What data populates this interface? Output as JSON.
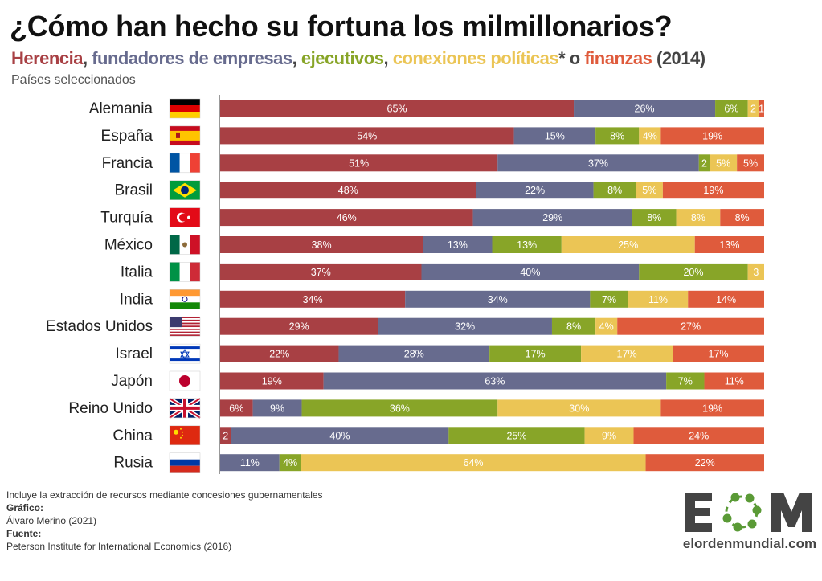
{
  "title": "¿Cómo han hecho su fortuna los milmillonarios?",
  "subtitle": {
    "parts": [
      {
        "text": "Herencia",
        "color": "#a84044"
      },
      {
        "text": ", ",
        "color": "#444444"
      },
      {
        "text": "fundadores de empresas",
        "color": "#676b8e"
      },
      {
        "text": ", ",
        "color": "#444444"
      },
      {
        "text": "ejecutivos",
        "color": "#88a528"
      },
      {
        "text": ", ",
        "color": "#444444"
      },
      {
        "text": "conexiones políticas",
        "color": "#ebc555"
      },
      {
        "text": "* o ",
        "color": "#444444"
      },
      {
        "text": "finanzas",
        "color": "#df5b3c"
      },
      {
        "text": " (2014)",
        "color": "#444444"
      }
    ]
  },
  "note": "Países seleccionados",
  "chart_data": {
    "type": "bar",
    "orientation": "horizontal",
    "stacked": true,
    "normalized": true,
    "unit": "%",
    "series": [
      {
        "name": "Herencia",
        "color": "#a84044"
      },
      {
        "name": "fundadores de empresas",
        "color": "#676b8e"
      },
      {
        "name": "ejecutivos",
        "color": "#88a528"
      },
      {
        "name": "conexiones políticas",
        "color": "#ebc555"
      },
      {
        "name": "finanzas",
        "color": "#df5b3c"
      }
    ],
    "categories": [
      {
        "name": "Alemania",
        "flag": "de",
        "values": [
          65,
          26,
          6,
          2,
          1
        ],
        "labels": [
          "65%",
          "26%",
          "6%",
          "2",
          "1"
        ]
      },
      {
        "name": "España",
        "flag": "es",
        "values": [
          54,
          15,
          8,
          4,
          19
        ],
        "labels": [
          "54%",
          "15%",
          "8%",
          "4%",
          "19%"
        ]
      },
      {
        "name": "Francia",
        "flag": "fr",
        "values": [
          51,
          37,
          2,
          5,
          5
        ],
        "labels": [
          "51%",
          "37%",
          "2",
          "5%",
          "5%"
        ]
      },
      {
        "name": "Brasil",
        "flag": "br",
        "values": [
          48,
          22,
          8,
          5,
          19
        ],
        "labels": [
          "48%",
          "22%",
          "8%",
          "5%",
          "19%"
        ]
      },
      {
        "name": "Turquía",
        "flag": "tr",
        "values": [
          46,
          29,
          8,
          8,
          8
        ],
        "labels": [
          "46%",
          "29%",
          "8%",
          "8%",
          "8%"
        ]
      },
      {
        "name": "México",
        "flag": "mx",
        "values": [
          38,
          13,
          13,
          25,
          13
        ],
        "labels": [
          "38%",
          "13%",
          "13%",
          "25%",
          "13%"
        ]
      },
      {
        "name": "Italia",
        "flag": "it",
        "values": [
          37,
          40,
          20,
          3,
          0
        ],
        "labels": [
          "37%",
          "40%",
          "20%",
          "3",
          ""
        ]
      },
      {
        "name": "India",
        "flag": "in",
        "values": [
          34,
          34,
          7,
          11,
          14
        ],
        "labels": [
          "34%",
          "34%",
          "7%",
          "11%",
          "14%"
        ]
      },
      {
        "name": "Estados Unidos",
        "flag": "us",
        "values": [
          29,
          32,
          8,
          4,
          27
        ],
        "labels": [
          "29%",
          "32%",
          "8%",
          "4%",
          "27%"
        ]
      },
      {
        "name": "Israel",
        "flag": "il",
        "values": [
          22,
          28,
          17,
          17,
          17
        ],
        "labels": [
          "22%",
          "28%",
          "17%",
          "17%",
          "17%"
        ]
      },
      {
        "name": "Japón",
        "flag": "jp",
        "values": [
          19,
          63,
          7,
          0,
          11
        ],
        "labels": [
          "19%",
          "63%",
          "7%",
          "",
          "11%"
        ]
      },
      {
        "name": "Reino Unido",
        "flag": "gb",
        "values": [
          6,
          9,
          36,
          30,
          19
        ],
        "labels": [
          "6%",
          "9%",
          "36%",
          "30%",
          "19%"
        ]
      },
      {
        "name": "China",
        "flag": "cn",
        "values": [
          2,
          40,
          25,
          9,
          24
        ],
        "labels": [
          "2",
          "40%",
          "25%",
          "9%",
          "24%"
        ]
      },
      {
        "name": "Rusia",
        "flag": "ru",
        "values": [
          0,
          11,
          4,
          64,
          22
        ],
        "labels": [
          "",
          "11%",
          "4%",
          "64%",
          "22%"
        ]
      }
    ]
  },
  "footer": {
    "footnote": "Incluye la extracción de recursos mediante concesiones gubernamentales",
    "chart_label": "Gráfico:",
    "chart_author": "Álvaro Merino (2021)",
    "source_label": "Fuente:",
    "source": "Peterson Institute for International Economics (2016)"
  },
  "logo": {
    "letters": "EOM",
    "site": "elordenmundial.com",
    "color": "#444444",
    "accent": "#5a9a36"
  }
}
